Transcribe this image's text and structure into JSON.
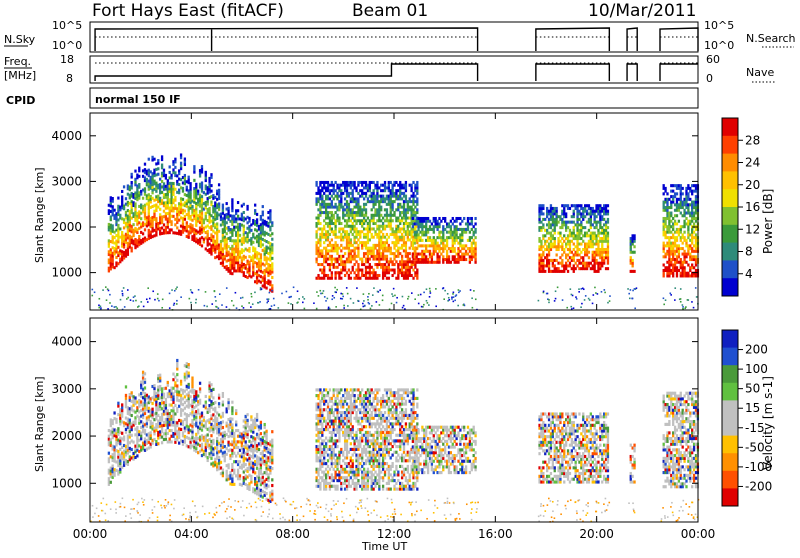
{
  "header": {
    "title": "Fort Hays East (fitACF)",
    "beam": "Beam 01",
    "date": "10/Mar/2011"
  },
  "nsky_panel": {
    "left_label": "N.Sky",
    "left_ticks": [
      "10^5",
      "10^0"
    ],
    "right_label": "N.Search",
    "right_ticks": [
      "10^5",
      "10^0"
    ]
  },
  "freq_panel": {
    "left_label_1": "Freq.",
    "left_label_2": "[MHz]",
    "left_ticks": [
      "18",
      "8"
    ],
    "right_label": "Nave",
    "right_ticks": [
      "60",
      "0"
    ]
  },
  "cpid_panel": {
    "label": "CPID",
    "value": "normal 150 IF"
  },
  "chart_data": [
    {
      "type": "heatmap",
      "panel": "power",
      "ylabel": "Slant Range [km]",
      "ylim": [
        180,
        4500
      ],
      "y_ticks": [
        1000,
        2000,
        3000,
        4000
      ],
      "xlim": [
        0,
        24
      ],
      "colorbar": {
        "label": "Power [dB]",
        "ticks": [
          "28",
          "24",
          "20",
          "16",
          "12",
          "8",
          "4"
        ],
        "colors": [
          "#e00000",
          "#ff4000",
          "#ff8c00",
          "#ffc000",
          "#f0e000",
          "#80c030",
          "#3a9a3a",
          "#2e8b7a",
          "#1e50c8",
          "#0000d0"
        ]
      },
      "echo_regions": [
        {
          "t_start": 0.7,
          "t_end": 7.2,
          "range_km": [
            900,
            3400
          ],
          "note": "band"
        },
        {
          "t_start": 8.9,
          "t_end": 12.9,
          "range_km": [
            850,
            3000
          ]
        },
        {
          "t_start": 12.7,
          "t_end": 15.2,
          "range_km": [
            1200,
            2200
          ]
        },
        {
          "t_start": 17.7,
          "t_end": 20.4,
          "range_km": [
            1000,
            2500
          ]
        },
        {
          "t_start": 21.3,
          "t_end": 21.5,
          "range_km": [
            1000,
            1800
          ]
        },
        {
          "t_start": 22.6,
          "t_end": 24.0,
          "range_km": [
            900,
            2900
          ]
        }
      ]
    },
    {
      "type": "heatmap",
      "panel": "velocity",
      "ylabel": "Slant Range [km]",
      "xlabel": "Time UT",
      "ylim": [
        180,
        4500
      ],
      "y_ticks": [
        1000,
        2000,
        3000,
        4000
      ],
      "x_ticks": [
        "00:00",
        "04:00",
        "08:00",
        "12:00",
        "16:00",
        "20:00",
        "00:00"
      ],
      "x_tick_hours": [
        0,
        4,
        8,
        12,
        16,
        20,
        24
      ],
      "xlim": [
        0,
        24
      ],
      "colorbar": {
        "label": "Velocity [m s-1]",
        "ticks": [
          "200",
          "100",
          "50",
          "15",
          "-15",
          "-50",
          "-100",
          "-200"
        ],
        "colors": [
          "#1020c0",
          "#2050d0",
          "#4a9a3a",
          "#60c040",
          "#c0c0c0",
          "#c0c0c0",
          "#ffc000",
          "#ff9000",
          "#ff5000",
          "#e00000"
        ]
      }
    }
  ]
}
